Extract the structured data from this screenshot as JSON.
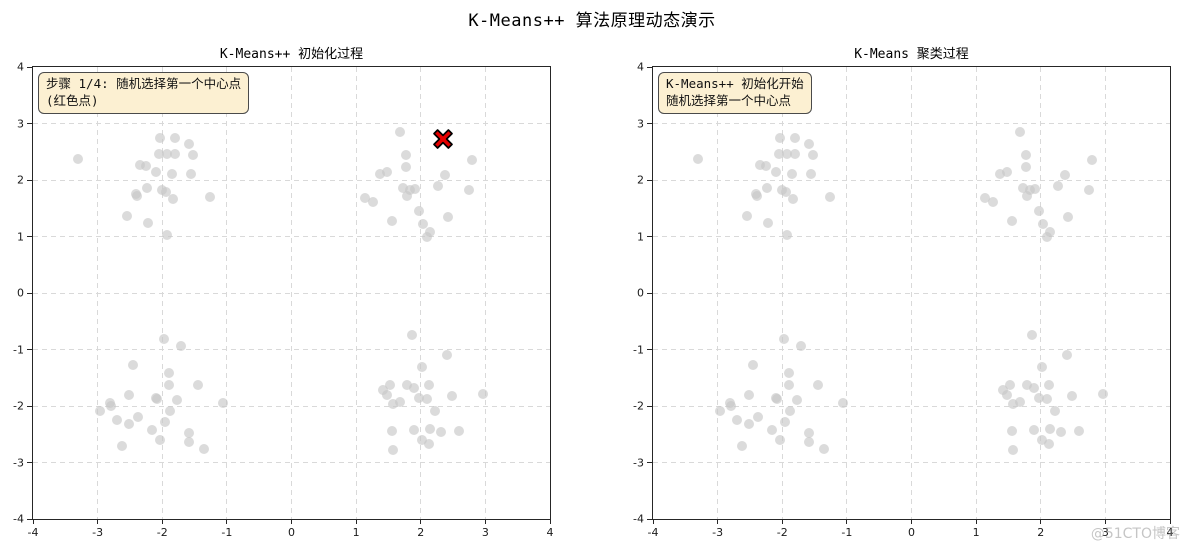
{
  "figure": {
    "title": "K-Means++ 算法原理动态演示"
  },
  "watermark": {
    "text": "@51CTO博客"
  },
  "dataset_points": [
    [
      -3.3,
      2.38
    ],
    [
      -2.04,
      2.75
    ],
    [
      -1.8,
      2.75
    ],
    [
      -1.58,
      2.63
    ],
    [
      -2.05,
      2.46
    ],
    [
      -1.93,
      2.46
    ],
    [
      -1.81,
      2.46
    ],
    [
      -1.52,
      2.44
    ],
    [
      -2.34,
      2.27
    ],
    [
      -2.25,
      2.24
    ],
    [
      -2.1,
      2.14
    ],
    [
      -1.85,
      2.1
    ],
    [
      -1.55,
      2.11
    ],
    [
      -2.24,
      1.85
    ],
    [
      -2.01,
      1.83
    ],
    [
      -2.41,
      1.76
    ],
    [
      -2.39,
      1.72
    ],
    [
      -1.94,
      1.78
    ],
    [
      -1.83,
      1.67
    ],
    [
      -1.26,
      1.7
    ],
    [
      -2.55,
      1.36
    ],
    [
      -2.22,
      1.24
    ],
    [
      -1.92,
      1.02
    ],
    [
      1.68,
      2.85
    ],
    [
      1.77,
      2.45
    ],
    [
      2.79,
      2.35
    ],
    [
      1.37,
      2.11
    ],
    [
      1.48,
      2.15
    ],
    [
      1.77,
      2.23
    ],
    [
      2.38,
      2.08
    ],
    [
      1.72,
      1.85
    ],
    [
      1.84,
      1.82
    ],
    [
      1.91,
      1.84
    ],
    [
      2.26,
      1.9
    ],
    [
      2.74,
      1.82
    ],
    [
      1.14,
      1.68
    ],
    [
      1.26,
      1.61
    ],
    [
      1.78,
      1.72
    ],
    [
      1.98,
      1.45
    ],
    [
      2.42,
      1.35
    ],
    [
      1.55,
      1.27
    ],
    [
      2.03,
      1.23
    ],
    [
      2.14,
      1.08
    ],
    [
      2.09,
      0.99
    ],
    [
      -1.98,
      -0.81
    ],
    [
      -1.71,
      -0.94
    ],
    [
      -2.46,
      -1.27
    ],
    [
      -1.9,
      -1.41
    ],
    [
      -1.89,
      -1.63
    ],
    [
      -1.45,
      -1.63
    ],
    [
      -2.51,
      -1.8
    ],
    [
      -2.1,
      -1.86
    ],
    [
      -2.08,
      -1.88
    ],
    [
      -1.77,
      -1.9
    ],
    [
      -2.81,
      -1.94
    ],
    [
      -2.79,
      -2.0
    ],
    [
      -2.97,
      -2.08
    ],
    [
      -1.06,
      -1.95
    ],
    [
      -1.88,
      -2.09
    ],
    [
      -2.7,
      -2.25
    ],
    [
      -2.37,
      -2.19
    ],
    [
      -2.51,
      -2.31
    ],
    [
      -1.95,
      -2.28
    ],
    [
      -2.16,
      -2.43
    ],
    [
      -2.03,
      -2.61
    ],
    [
      -1.59,
      -2.47
    ],
    [
      -1.59,
      -2.64
    ],
    [
      -2.63,
      -2.71
    ],
    [
      -1.35,
      -2.76
    ],
    [
      1.86,
      -0.74
    ],
    [
      2.41,
      -1.09
    ],
    [
      2.02,
      -1.31
    ],
    [
      1.52,
      -1.62
    ],
    [
      1.41,
      -1.72
    ],
    [
      1.78,
      -1.62
    ],
    [
      1.9,
      -1.68
    ],
    [
      2.13,
      -1.62
    ],
    [
      1.48,
      -1.81
    ],
    [
      1.98,
      -1.86
    ],
    [
      2.1,
      -1.87
    ],
    [
      2.49,
      -1.82
    ],
    [
      2.97,
      -1.78
    ],
    [
      1.57,
      -1.96
    ],
    [
      1.68,
      -1.93
    ],
    [
      2.22,
      -2.08
    ],
    [
      1.55,
      -2.45
    ],
    [
      1.9,
      -2.43
    ],
    [
      2.14,
      -2.4
    ],
    [
      2.31,
      -2.46
    ],
    [
      2.59,
      -2.45
    ],
    [
      2.02,
      -2.61
    ],
    [
      2.12,
      -2.67
    ],
    [
      1.57,
      -2.78
    ]
  ],
  "chart_data": [
    {
      "type": "scatter",
      "title": "K-Means++ 初始化过程",
      "xlim": [
        -4,
        4
      ],
      "ylim": [
        -4,
        4
      ],
      "xticks": [
        -4,
        -3,
        -2,
        -1,
        0,
        1,
        2,
        3,
        4
      ],
      "yticks": [
        -4,
        -3,
        -2,
        -1,
        0,
        1,
        2,
        3,
        4
      ],
      "grid": true,
      "legend": false,
      "annotation": {
        "lines": [
          "步骤 1/4: 随机选择第一个中心点",
          "(红色点)"
        ]
      },
      "series": [
        {
          "marker": "circle",
          "color": "#c7c7c7",
          "opacity": 0.65,
          "points": "dataset_points"
        },
        {
          "marker": "X",
          "color": "#e60000",
          "edge_color": "#000000",
          "size": 24,
          "points": [
            [
              2.34,
              2.73
            ]
          ]
        }
      ]
    },
    {
      "type": "scatter",
      "title": "K-Means 聚类过程",
      "xlim": [
        -4,
        4
      ],
      "ylim": [
        -4,
        4
      ],
      "xticks": [
        -4,
        -3,
        -2,
        -1,
        0,
        1,
        2,
        3,
        4
      ],
      "yticks": [
        -4,
        -3,
        -2,
        -1,
        0,
        1,
        2,
        3,
        4
      ],
      "grid": true,
      "legend": false,
      "annotation": {
        "lines": [
          "K-Means++ 初始化开始",
          "随机选择第一个中心点"
        ]
      },
      "series": [
        {
          "marker": "circle",
          "color": "#c7c7c7",
          "opacity": 0.65,
          "points": "dataset_points"
        }
      ]
    }
  ],
  "colors": {
    "annotation_bg": "#fcf0d2",
    "annotation_border": "#4a4a4a",
    "grid": "#d9d9d9",
    "spine": "#262626",
    "point": "#c7c7c7",
    "centroid": "#e60000",
    "centroid_edge": "#000000",
    "watermark": "#8c8c8c"
  }
}
